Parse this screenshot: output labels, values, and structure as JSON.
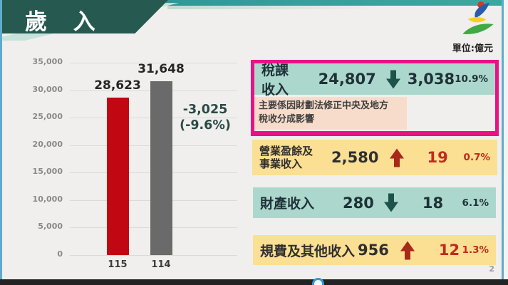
{
  "slide": {
    "title": "歲 入",
    "unit_label": "單位:億元",
    "page_number": "2"
  },
  "chart_data": {
    "type": "bar",
    "categories": [
      "115",
      "114"
    ],
    "values": [
      28623,
      31648
    ],
    "value_labels": [
      "28,623",
      "31,648"
    ],
    "bar_colors": [
      "#C00712",
      "#6A6A6A"
    ],
    "ylim": [
      0,
      35000
    ],
    "ytick_interval": 5000,
    "ytick_labels": [
      "35,000",
      "30,000",
      "25,000",
      "20,000",
      "15,000",
      "10,000",
      "5,000",
      "0"
    ],
    "grid": true,
    "legend": false,
    "title": "",
    "xlabel": "",
    "ylabel": "",
    "annotation": {
      "line1": "-3,025",
      "line2": "(-9.6%)"
    }
  },
  "panel": {
    "items": [
      {
        "label": "稅課收入",
        "value": "24,807",
        "direction": "down",
        "change": "3,038",
        "percent": "10.9%",
        "highlighted": true,
        "note_lines": [
          "主要係因財劃法修正中央及地方",
          "稅收分成影響"
        ]
      },
      {
        "label": "營業盈餘及事業收入",
        "label_lines": [
          "營業盈餘及",
          "事業收入"
        ],
        "value": "2,580",
        "direction": "up",
        "change": "19",
        "percent": "0.7%"
      },
      {
        "label": "財產收入",
        "value": "280",
        "direction": "down",
        "change": "18",
        "percent": "6.1%"
      },
      {
        "label": "規費及其他收入",
        "value": "956",
        "direction": "up",
        "change": "12",
        "percent": "1.3%"
      }
    ]
  },
  "colors": {
    "header_dark_teal": "#265A50",
    "header_top_bar": "#2C8A91",
    "header_mint": "#C7E3D9",
    "slide_border_blue": "#5FABCB",
    "bar_red": "#C00712",
    "bar_gray": "#6A6A6A",
    "highlight_border_magenta": "#E81285",
    "teal_box_bg": "#ACD7CD",
    "yellow_box_bg": "#FBDF92",
    "note_bg": "#F7DCCB",
    "up_arrow_red": "#A8281A",
    "change_red": "#C02B1B",
    "down_arrow_teal": "#1D5348",
    "annotation_teal": "#2A4A46"
  },
  "icons": {
    "up_arrow": "up-arrow-icon",
    "down_arrow": "down-arrow-icon",
    "logo": "sports-figure-logo"
  }
}
